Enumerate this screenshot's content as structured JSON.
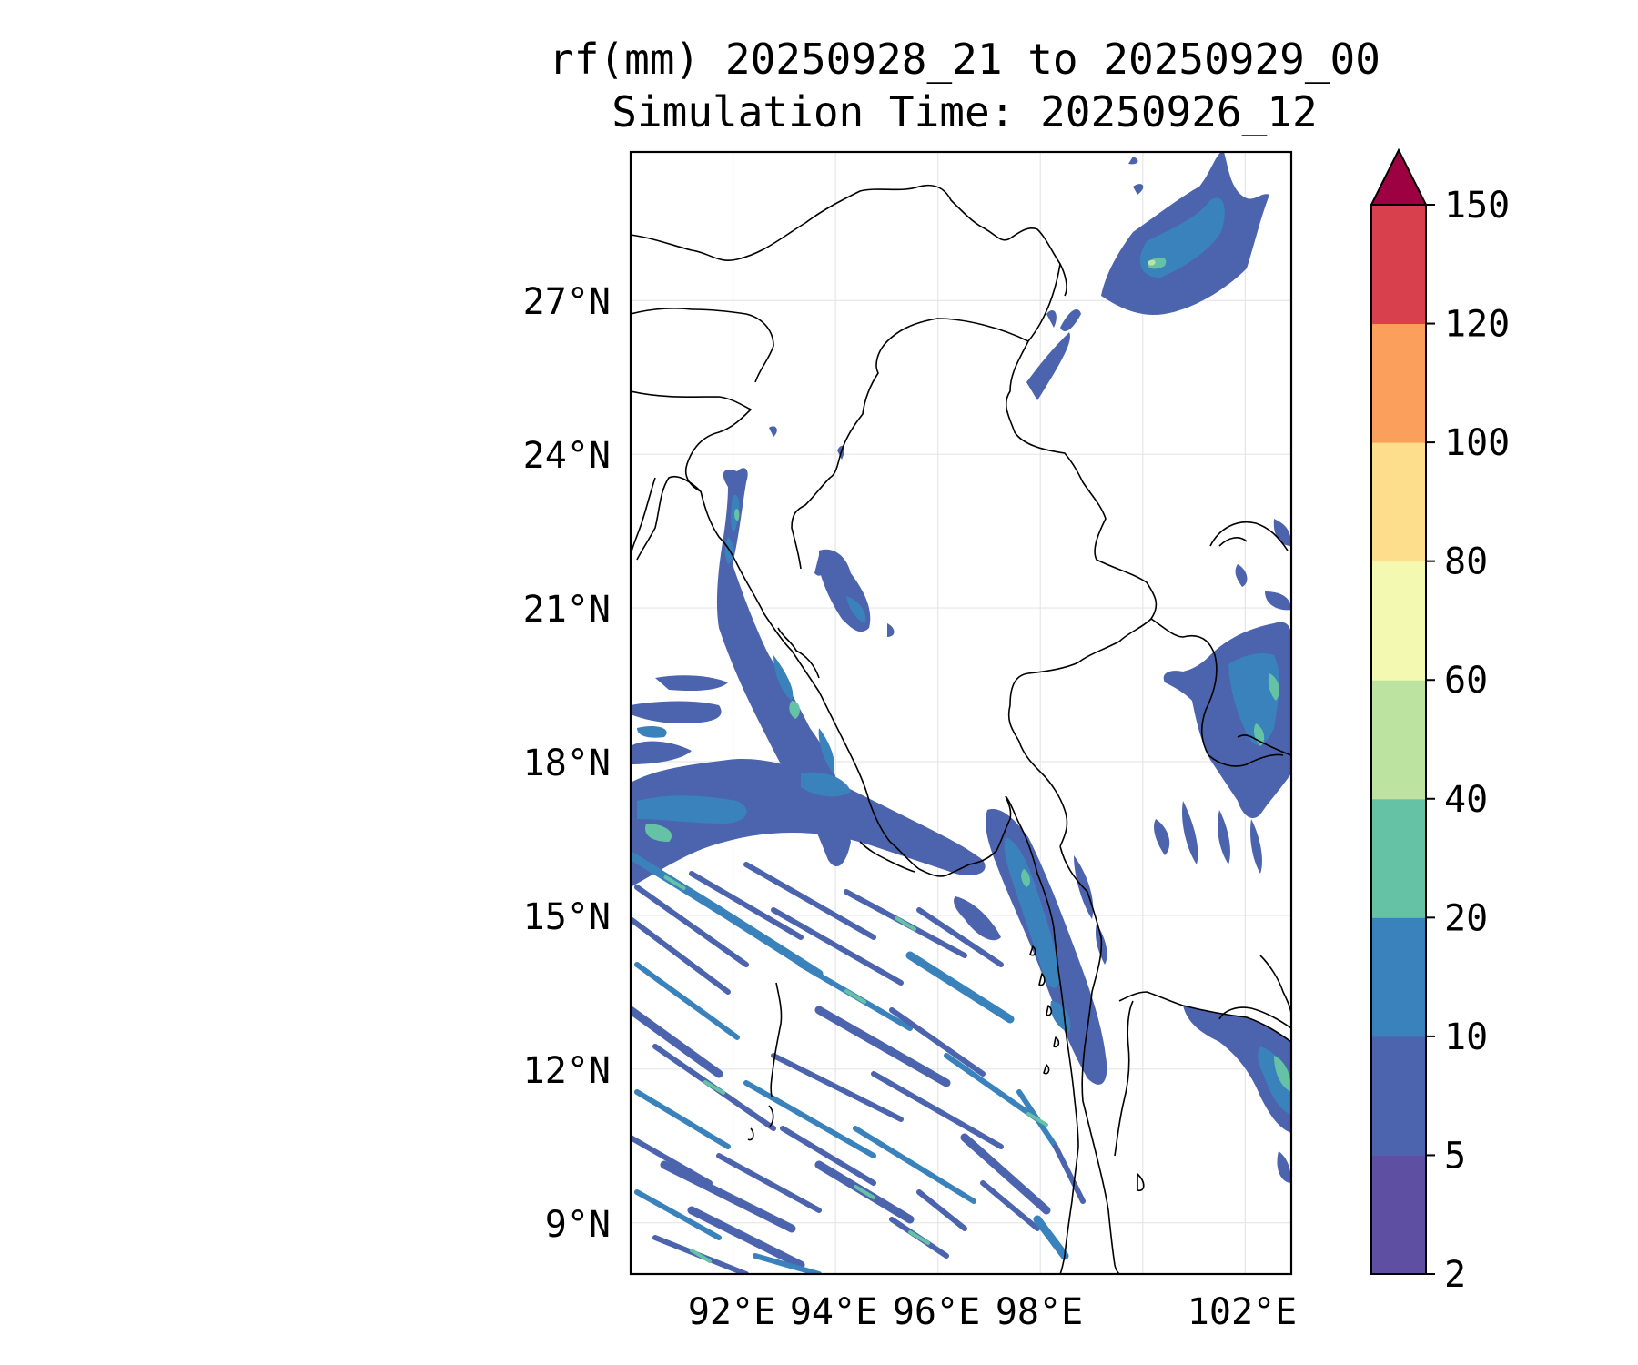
{
  "title": {
    "line1": "rf(mm) 20250928_21 to 20250929_00",
    "line2": "Simulation Time: 20250926_12"
  },
  "map": {
    "lat_ticks": [
      "27°N",
      "24°N",
      "21°N",
      "18°N",
      "15°N",
      "12°N",
      "9°N"
    ],
    "lon_ticks": [
      "92°E",
      "94°E",
      "96°E",
      "98°E",
      "102°E"
    ],
    "extent": {
      "lon": [
        90.0,
        102.9
      ],
      "lat": [
        8.0,
        29.9
      ]
    },
    "gridlines": true
  },
  "colorbar": {
    "levels": [
      "2",
      "5",
      "10",
      "20",
      "40",
      "60",
      "80",
      "100",
      "120",
      "150"
    ],
    "colors": [
      "#5e4fa2",
      "#4c63ad",
      "#3a82bb",
      "#66c2a5",
      "#bce4a0",
      "#f3f9b0",
      "#fdde8c",
      "#fba05c",
      "#d8404d",
      "#9e0142"
    ],
    "extend": "max"
  }
}
